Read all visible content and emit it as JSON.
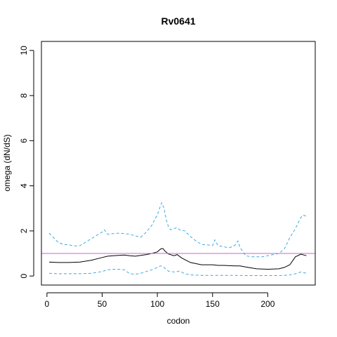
{
  "chart_data": {
    "type": "line",
    "title": "Rv0641",
    "xlabel": "codon",
    "ylabel": "omega (dN/dS)",
    "xlim": [
      -5,
      243
    ],
    "ylim": [
      -0.4,
      10.4
    ],
    "xticks": [
      0,
      50,
      100,
      150,
      200
    ],
    "yticks": [
      0,
      2,
      4,
      6,
      8,
      10
    ],
    "grid": false,
    "reference_line": {
      "y": 1,
      "color": "#cc66cc"
    },
    "series": [
      {
        "style": "solid",
        "color": "#000000",
        "x": [
          2,
          10,
          20,
          30,
          40,
          50,
          55,
          60,
          70,
          75,
          80,
          90,
          95,
          100,
          103,
          105,
          107,
          110,
          115,
          118,
          122,
          130,
          140,
          150,
          155,
          160,
          170,
          175,
          180,
          190,
          200,
          210,
          215,
          220,
          225,
          230,
          235
        ],
        "y": [
          0.62,
          0.6,
          0.6,
          0.62,
          0.7,
          0.82,
          0.88,
          0.9,
          0.93,
          0.9,
          0.88,
          0.95,
          1.0,
          1.07,
          1.2,
          1.22,
          1.1,
          0.98,
          0.9,
          0.95,
          0.8,
          0.6,
          0.5,
          0.5,
          0.47,
          0.47,
          0.45,
          0.45,
          0.4,
          0.32,
          0.3,
          0.32,
          0.38,
          0.5,
          0.85,
          0.97,
          0.9
        ]
      },
      {
        "style": "dashed",
        "color": "#3fa9e0",
        "x": [
          2,
          5,
          10,
          15,
          20,
          25,
          30,
          35,
          40,
          45,
          50,
          52,
          55,
          60,
          65,
          70,
          75,
          80,
          85,
          90,
          95,
          98,
          100,
          102,
          104,
          106,
          108,
          110,
          112,
          115,
          118,
          120,
          125,
          130,
          135,
          140,
          145,
          150,
          152,
          155,
          160,
          165,
          170,
          173,
          175,
          178,
          180,
          185,
          190,
          195,
          200,
          205,
          210,
          215,
          220,
          225,
          228,
          230,
          232,
          235
        ],
        "y": [
          1.9,
          1.75,
          1.5,
          1.4,
          1.38,
          1.33,
          1.35,
          1.5,
          1.65,
          1.8,
          1.95,
          2.05,
          1.85,
          1.88,
          1.9,
          1.88,
          1.85,
          1.78,
          1.72,
          1.95,
          2.25,
          2.55,
          2.7,
          3.0,
          3.25,
          3.0,
          2.5,
          2.2,
          2.05,
          2.1,
          2.15,
          2.05,
          2.0,
          1.75,
          1.55,
          1.4,
          1.38,
          1.35,
          1.6,
          1.35,
          1.3,
          1.25,
          1.35,
          1.55,
          1.25,
          1.05,
          0.9,
          0.85,
          0.85,
          0.85,
          0.9,
          0.95,
          1.0,
          1.2,
          1.7,
          2.1,
          2.4,
          2.6,
          2.7,
          2.65
        ]
      },
      {
        "style": "dashed",
        "color": "#3fa9e0",
        "x": [
          2,
          10,
          20,
          30,
          40,
          50,
          55,
          60,
          65,
          70,
          75,
          80,
          85,
          90,
          95,
          100,
          103,
          105,
          108,
          110,
          115,
          120,
          125,
          130,
          140,
          150,
          160,
          170,
          180,
          190,
          200,
          210,
          215,
          220,
          225,
          230,
          235
        ],
        "y": [
          0.12,
          0.1,
          0.1,
          0.1,
          0.12,
          0.2,
          0.28,
          0.3,
          0.3,
          0.28,
          0.1,
          0.08,
          0.12,
          0.2,
          0.28,
          0.38,
          0.45,
          0.42,
          0.3,
          0.22,
          0.18,
          0.22,
          0.1,
          0.05,
          0.03,
          0.03,
          0.03,
          0.03,
          0.02,
          0.02,
          0.02,
          0.02,
          0.03,
          0.05,
          0.1,
          0.18,
          0.12
        ]
      }
    ]
  }
}
